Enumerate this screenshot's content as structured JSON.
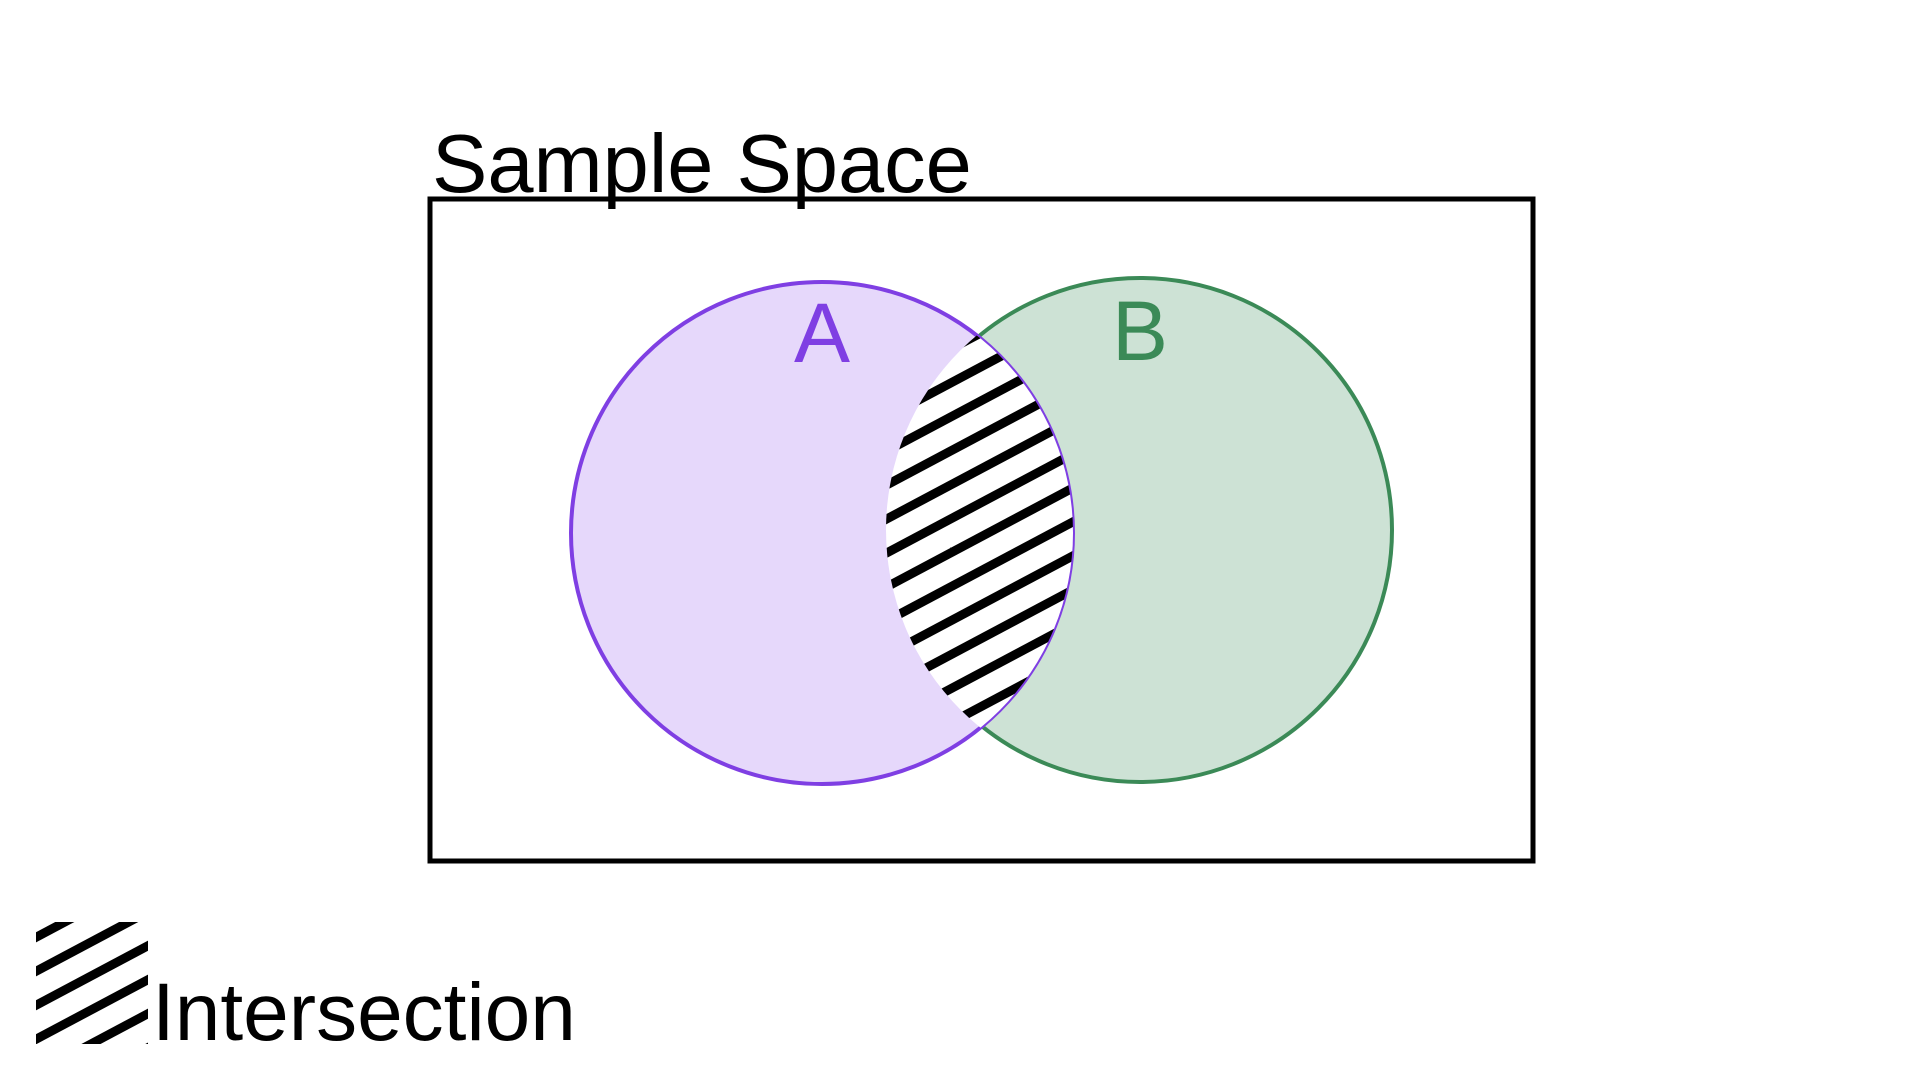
{
  "diagram": {
    "title": "Sample Space",
    "sets": [
      {
        "label": "A",
        "stroke": "#7f3fe3",
        "fill": "#e6d8fb"
      },
      {
        "label": "B",
        "stroke": "#3b8a57",
        "fill": "#cde2d5"
      }
    ],
    "intersection": {
      "pattern": "black diagonal stripes on white"
    },
    "legend": {
      "label": "Intersection"
    }
  }
}
